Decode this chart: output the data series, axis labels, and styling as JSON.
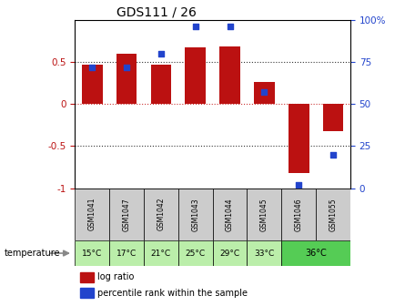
{
  "title": "GDS111 / 26",
  "samples": [
    "GSM1041",
    "GSM1047",
    "GSM1042",
    "GSM1043",
    "GSM1044",
    "GSM1045",
    "GSM1046",
    "GSM1055"
  ],
  "log_ratios": [
    0.47,
    0.6,
    0.47,
    0.67,
    0.68,
    0.26,
    -0.82,
    -0.32
  ],
  "percentile_ranks": [
    72,
    72,
    80,
    96,
    96,
    57,
    2,
    20
  ],
  "bar_color": "#BB1111",
  "dot_color": "#2244CC",
  "ylim_left": [
    -1,
    1
  ],
  "ylim_right": [
    0,
    100
  ],
  "yticks_left": [
    -1,
    -0.5,
    0,
    0.5
  ],
  "ytick_labels_left": [
    "-1",
    "-0.5",
    "0",
    "0.5"
  ],
  "yticks_right": [
    0,
    25,
    50,
    75,
    100
  ],
  "ytick_labels_right": [
    "0",
    "25",
    "50",
    "75",
    "100%"
  ],
  "hlines_dotted": [
    -0.5,
    0.5
  ],
  "hline_zero_color": "#CC3333",
  "hline_dot_color": "#333333",
  "bg_color_sample": "#CCCCCC",
  "bg_color_temp_light": "#BBEEAA",
  "bg_color_temp_green": "#55CC55",
  "temp_labels": [
    "15°C",
    "17°C",
    "21°C",
    "25°C",
    "29°C",
    "33°C"
  ],
  "temp_label_merged": "36°C",
  "temperature_label": "temperature",
  "legend_items": [
    "log ratio",
    "percentile rank within the sample"
  ]
}
